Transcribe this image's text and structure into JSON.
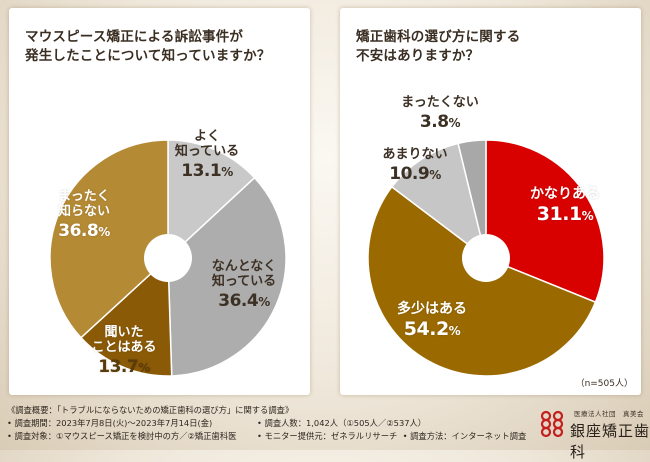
{
  "chart_data": [
    {
      "type": "pie",
      "title_lines": [
        "マウスピース矯正による訴訟事件が",
        "発生したことについて知っていますか？"
      ],
      "slices": [
        {
          "label_lines": [
            "よく",
            "知っている"
          ],
          "value": 13.1,
          "value_text": "13.1",
          "color": "#c9c9c9"
        },
        {
          "label_lines": [
            "なんとなく",
            "知っている"
          ],
          "value": 36.4,
          "value_text": "36.4",
          "color": "#adadad"
        },
        {
          "label_lines": [
            "聞いた",
            "ことはある"
          ],
          "value": 13.7,
          "value_text": "13.7",
          "color": "#8a5a07"
        },
        {
          "label_lines": [
            "まったく",
            "知らない"
          ],
          "value": 36.8,
          "value_text": "36.8",
          "color": "#b58a34"
        }
      ],
      "unit": "%"
    },
    {
      "type": "pie",
      "title_lines": [
        "矯正歯科の選び方に関する",
        "不安はありますか？"
      ],
      "slices": [
        {
          "label_lines": [
            "かなりある"
          ],
          "value": 31.1,
          "value_text": "31.1",
          "color": "#d90000"
        },
        {
          "label_lines": [
            "多少はある"
          ],
          "value": 54.2,
          "value_text": "54.2",
          "color": "#9a6900"
        },
        {
          "label_lines": [
            "あまりない"
          ],
          "value": 10.9,
          "value_text": "10.9",
          "color": "#c6c6c6"
        },
        {
          "label_lines": [
            "まったくない"
          ],
          "value": 3.8,
          "value_text": "3.8",
          "color": "#a8a8a8"
        }
      ],
      "unit": "%",
      "note": "（n=505人）"
    }
  ],
  "footer": {
    "overview": "《調査概要：「トラブルにならないための矯正歯科の選び方」に関する調査》",
    "period": "• 調査期間：2023年7月8日(火)〜2023年7月14日(金)",
    "respondents": "• 調査人数：1,042人（①505人／②537人）",
    "target": "• 調査対象：①マウスピース矯正を検討中の方／②矯正歯科医",
    "provider": "• モニター提供元：ゼネラルリサーチ",
    "method": "• 調査方法：インターネット調査"
  },
  "logo": {
    "corp": "医療法人社団　真美会",
    "brand": "銀座矯正歯科",
    "color": "#c41e1e"
  }
}
